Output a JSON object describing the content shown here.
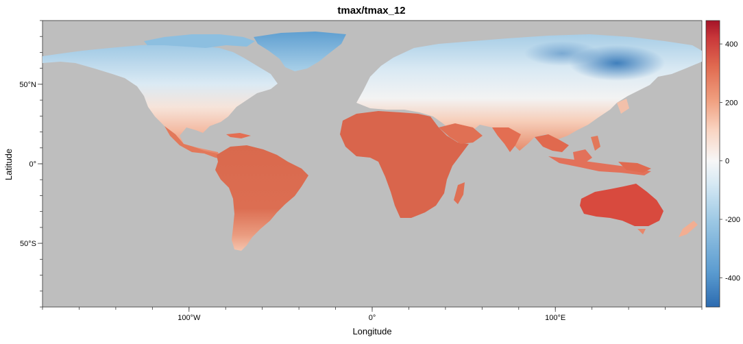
{
  "title": "tmax/tmax_12",
  "x_axis": {
    "label": "Longitude",
    "ticks": [
      {
        "value": -100,
        "label": "100°W"
      },
      {
        "value": 0,
        "label": "0°"
      },
      {
        "value": 100,
        "label": "100°E"
      }
    ],
    "range": [
      -180,
      180
    ]
  },
  "y_axis": {
    "label": "Latitude",
    "ticks": [
      {
        "value": 50,
        "label": "50°N"
      },
      {
        "value": 0,
        "label": "0°"
      },
      {
        "value": -50,
        "label": "50°S"
      }
    ],
    "range": [
      -90,
      90
    ]
  },
  "colorbar": {
    "range": [
      -500,
      480
    ],
    "ticks": [
      {
        "value": 400,
        "label": "400"
      },
      {
        "value": 200,
        "label": "200"
      },
      {
        "value": 0,
        "label": "0"
      },
      {
        "value": -200,
        "label": "-200"
      },
      {
        "value": -400,
        "label": "-400"
      }
    ],
    "colors": [
      "#2c6bb0",
      "#5a9bd0",
      "#9cc8e4",
      "#d6e9f4",
      "#f7f7f7",
      "#f9d3c0",
      "#f0a080",
      "#e06a50",
      "#c9373a",
      "#a51428"
    ]
  },
  "background_color": "#bebebe"
}
